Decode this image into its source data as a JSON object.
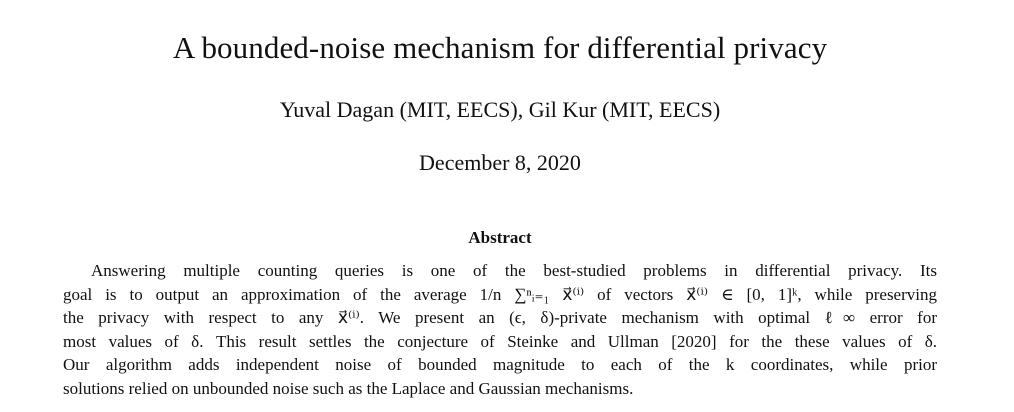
{
  "paper": {
    "title": "A bounded-noise mechanism for differential privacy",
    "authors": "Yuval Dagan (MIT, EECS), Gil Kur (MIT, EECS)",
    "date": "December 8, 2020",
    "abstract_heading": "Abstract",
    "abstract_lines": [
      "Answering multiple counting queries is one of the best-studied problems in differential privacy. Its",
      "goal is to output an approximation of the average 1/n ∑ⁿᵢ₌₁ x⃗⁽ⁱ⁾ of vectors x⃗⁽ⁱ⁾ ∈ [0, 1]ᵏ, while preserving",
      "the privacy with respect to any x⃗⁽ⁱ⁾. We present an (ϵ, δ)-private mechanism with optimal ℓ∞ error for",
      "most values of δ. This result settles the conjecture of Steinke and Ullman [2020] for the these values of δ.",
      "Our algorithm adds independent noise of bounded magnitude to each of the k coordinates, while prior",
      "solutions relied on unbounded noise such as the Laplace and Gaussian mechanisms."
    ]
  }
}
